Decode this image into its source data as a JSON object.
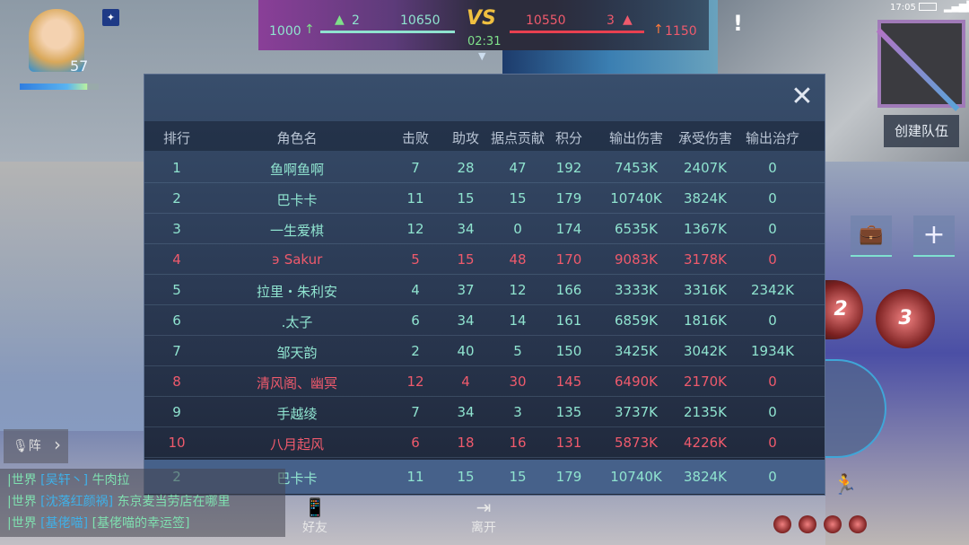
{
  "hud": {
    "level": "57",
    "left_team": {
      "gain": "1000",
      "towers": "2",
      "score": "10650",
      "color": "#8fe3cf"
    },
    "right_team": {
      "gain": "1150",
      "towers": "3",
      "score": "10550",
      "color": "#ef5a6c"
    },
    "vs_label": "VS",
    "timer": "02:31",
    "alert": "!",
    "clock": "17:05"
  },
  "scoreboard": {
    "close_icon": "close-icon",
    "columns": [
      "排行",
      "角色名",
      "击败",
      "助攻",
      "据点贡献",
      "积分",
      "输出伤害",
      "承受伤害",
      "输出治疗"
    ],
    "rows": [
      {
        "rank": "1",
        "name": "鱼啊鱼啊",
        "kills": "7",
        "assists": "28",
        "capture": "47",
        "score": "192",
        "dmg_out": "7453K",
        "dmg_taken": "2407K",
        "heal": "0",
        "team": "ally"
      },
      {
        "rank": "2",
        "name": "巴卡卡",
        "kills": "11",
        "assists": "15",
        "capture": "15",
        "score": "179",
        "dmg_out": "10740K",
        "dmg_taken": "3824K",
        "heal": "0",
        "team": "ally"
      },
      {
        "rank": "3",
        "name": "一生爱棋",
        "kills": "12",
        "assists": "34",
        "capture": "0",
        "score": "174",
        "dmg_out": "6535K",
        "dmg_taken": "1367K",
        "heal": "0",
        "team": "ally"
      },
      {
        "rank": "4",
        "name": "϶ Sakur",
        "kills": "5",
        "assists": "15",
        "capture": "48",
        "score": "170",
        "dmg_out": "9083K",
        "dmg_taken": "3178K",
        "heal": "0",
        "team": "enemy"
      },
      {
        "rank": "5",
        "name": "拉里・朱利安",
        "kills": "4",
        "assists": "37",
        "capture": "12",
        "score": "166",
        "dmg_out": "3333K",
        "dmg_taken": "3316K",
        "heal": "2342K",
        "team": "ally"
      },
      {
        "rank": "6",
        "name": ".太子",
        "kills": "6",
        "assists": "34",
        "capture": "14",
        "score": "161",
        "dmg_out": "6859K",
        "dmg_taken": "1816K",
        "heal": "0",
        "team": "ally"
      },
      {
        "rank": "7",
        "name": "邹天韵",
        "kills": "2",
        "assists": "40",
        "capture": "5",
        "score": "150",
        "dmg_out": "3425K",
        "dmg_taken": "3042K",
        "heal": "1934K",
        "team": "ally"
      },
      {
        "rank": "8",
        "name": "清风阁、幽冥",
        "kills": "12",
        "assists": "4",
        "capture": "30",
        "score": "145",
        "dmg_out": "6490K",
        "dmg_taken": "2170K",
        "heal": "0",
        "team": "enemy"
      },
      {
        "rank": "9",
        "name": "手越绫",
        "kills": "7",
        "assists": "34",
        "capture": "3",
        "score": "135",
        "dmg_out": "3737K",
        "dmg_taken": "2135K",
        "heal": "0",
        "team": "ally"
      },
      {
        "rank": "10",
        "name": "八月起风",
        "kills": "6",
        "assists": "18",
        "capture": "16",
        "score": "131",
        "dmg_out": "5873K",
        "dmg_taken": "4226K",
        "heal": "0",
        "team": "enemy"
      }
    ],
    "self_row": {
      "rank": "2",
      "name": "巴卡卡",
      "kills": "11",
      "assists": "15",
      "capture": "15",
      "score": "179",
      "dmg_out": "10740K",
      "dmg_taken": "3824K",
      "heal": "0"
    }
  },
  "right_panel": {
    "create_team": "创建队伍",
    "skill_2": "2",
    "skill_3": "3"
  },
  "voice": {
    "label": "阵",
    "expand": "›"
  },
  "chat": [
    {
      "channel": "|世界",
      "name": "[吴轩丶]",
      "msg": "牛肉拉"
    },
    {
      "channel": "|世界",
      "name": "[沈落红颜祸]",
      "msg": "东京麦当劳店在哪里"
    },
    {
      "channel": "|世界",
      "name": "[基佬喵]",
      "msg": "[基佬喵的幸运签]"
    }
  ],
  "bottom_buttons": {
    "friends": "好友",
    "leave": "离开"
  }
}
